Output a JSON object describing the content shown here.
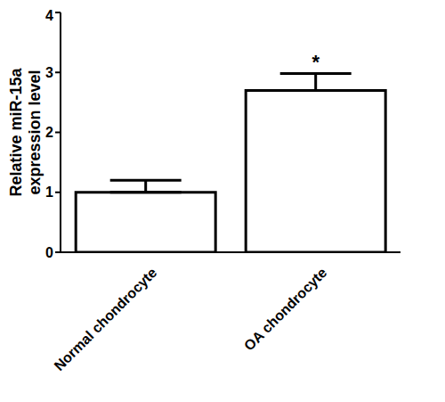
{
  "chart_data": {
    "type": "bar",
    "y_label": "Relative miR-15a expression level",
    "categories": [
      "Normal chondrocyte",
      "OA chondrocyte"
    ],
    "values": [
      1.0,
      2.7
    ],
    "error": [
      0.2,
      0.28
    ],
    "color": "#ffffff",
    "ylim": [
      0,
      4
    ],
    "yticks": [
      0,
      1,
      2,
      3,
      4
    ],
    "grid": false,
    "annotations": [
      {
        "category": "OA chondrocyte",
        "text": "*"
      }
    ]
  }
}
